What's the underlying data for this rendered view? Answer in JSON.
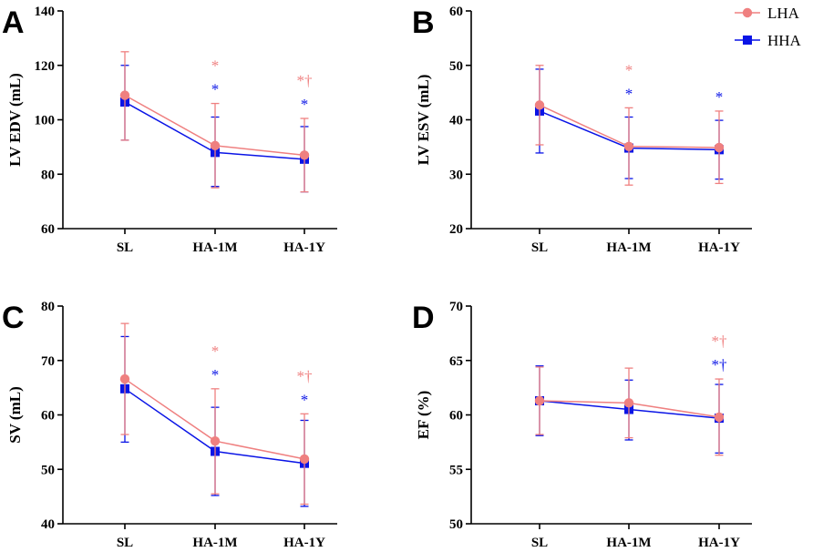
{
  "colors": {
    "lha": "#ef8080",
    "hha": "#0a14e6",
    "axis": "#000000"
  },
  "legend": [
    {
      "name": "LHA",
      "marker": "circle"
    },
    {
      "name": "HHA",
      "marker": "square"
    }
  ],
  "chart_data": [
    {
      "type": "line",
      "panel": "A",
      "ylabel": "LV EDV (mL)",
      "categories": [
        "SL",
        "HA-1M",
        "HA-1Y"
      ],
      "ylim": [
        60,
        140
      ],
      "yticks": [
        60,
        80,
        100,
        120,
        140
      ],
      "series": [
        {
          "name": "LHA",
          "values": [
            109,
            90.5,
            87
          ],
          "lower": [
            92.5,
            75,
            73.5
          ],
          "upper": [
            125,
            106,
            100.5
          ],
          "annotations": [
            "",
            "*",
            "*†"
          ]
        },
        {
          "name": "HHA",
          "values": [
            106.5,
            88,
            85.5
          ],
          "lower": [
            92.5,
            75.5,
            73.5
          ],
          "upper": [
            120,
            101,
            97.5
          ],
          "annotations": [
            "",
            "*",
            "*"
          ]
        }
      ]
    },
    {
      "type": "line",
      "panel": "B",
      "ylabel": "LV ESV (mL)",
      "categories": [
        "SL",
        "HA-1M",
        "HA-1Y"
      ],
      "ylim": [
        20,
        60
      ],
      "yticks": [
        20,
        30,
        40,
        50,
        60
      ],
      "series": [
        {
          "name": "LHA",
          "values": [
            42.7,
            35.1,
            34.9
          ],
          "lower": [
            35.4,
            28,
            28.3
          ],
          "upper": [
            50,
            42.2,
            41.6
          ],
          "annotations": [
            "",
            "*",
            ""
          ]
        },
        {
          "name": "HHA",
          "values": [
            41.6,
            34.8,
            34.5
          ],
          "lower": [
            33.9,
            29.2,
            29.1
          ],
          "upper": [
            49.3,
            40.5,
            39.9
          ],
          "annotations": [
            "",
            "*",
            "*"
          ]
        }
      ]
    },
    {
      "type": "line",
      "panel": "C",
      "ylabel": "SV (mL)",
      "categories": [
        "SL",
        "HA-1M",
        "HA-1Y"
      ],
      "ylim": [
        40,
        80
      ],
      "yticks": [
        40,
        50,
        60,
        70,
        80
      ],
      "series": [
        {
          "name": "LHA",
          "values": [
            66.6,
            55.2,
            51.9
          ],
          "lower": [
            56.4,
            45.5,
            43.6
          ],
          "upper": [
            76.8,
            64.8,
            60.2
          ],
          "annotations": [
            "",
            "*",
            "*†"
          ]
        },
        {
          "name": "HHA",
          "values": [
            64.8,
            53.3,
            51.1
          ],
          "lower": [
            55,
            45.2,
            43.2
          ],
          "upper": [
            74.4,
            61.4,
            59
          ],
          "annotations": [
            "",
            "*",
            "*"
          ]
        }
      ]
    },
    {
      "type": "line",
      "panel": "D",
      "ylabel": "EF (%)",
      "categories": [
        "SL",
        "HA-1M",
        "HA-1Y"
      ],
      "ylim": [
        50,
        70
      ],
      "yticks": [
        50,
        55,
        60,
        65,
        70
      ],
      "series": [
        {
          "name": "LHA",
          "values": [
            61.3,
            61.1,
            59.8
          ],
          "lower": [
            58.2,
            57.9,
            56.3
          ],
          "upper": [
            64.4,
            64.3,
            63.3
          ],
          "annotations": [
            "",
            "",
            "*†"
          ]
        },
        {
          "name": "HHA",
          "values": [
            61.3,
            60.5,
            59.7
          ],
          "lower": [
            58.1,
            57.7,
            56.5
          ],
          "upper": [
            64.5,
            63.2,
            62.8
          ],
          "annotations": [
            "",
            "",
            "*†"
          ]
        }
      ]
    }
  ]
}
